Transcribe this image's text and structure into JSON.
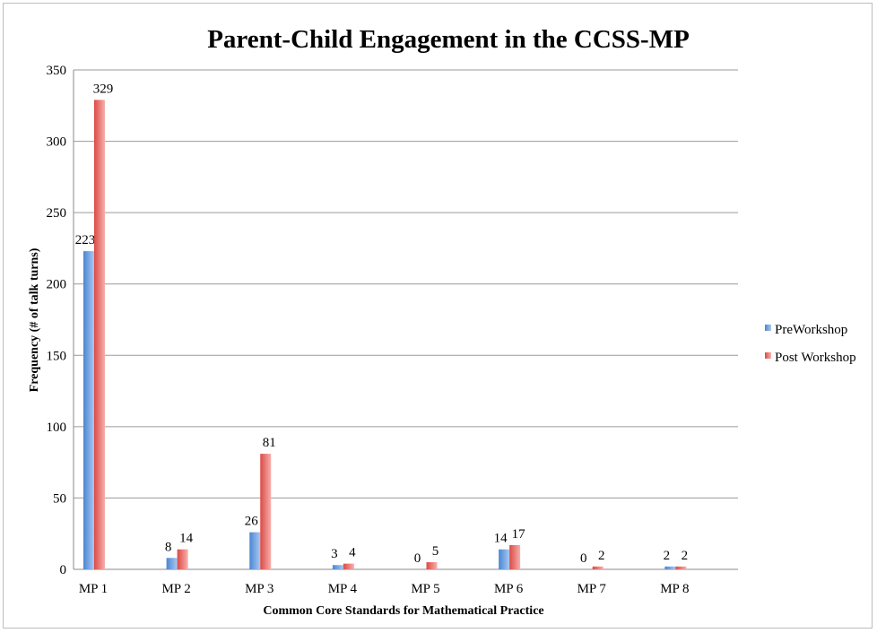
{
  "chart_data": {
    "type": "bar",
    "title": "Parent-Child Engagement in the CCSS-MP",
    "xlabel": "Common Core Standards for Mathematical Practice",
    "ylabel": "Frequency (# of talk turns)",
    "categories": [
      "MP 1",
      "MP 2",
      "MP 3",
      "MP 4",
      "MP 5",
      "MP 6",
      "MP 7",
      "MP 8"
    ],
    "series": [
      {
        "name": "PreWorkshop",
        "values": [
          223,
          8,
          26,
          3,
          0,
          14,
          0,
          2
        ]
      },
      {
        "name": "Post Workshop",
        "values": [
          329,
          14,
          81,
          4,
          5,
          17,
          2,
          2
        ]
      }
    ],
    "ylim": [
      0,
      350
    ],
    "yticks": [
      0,
      50,
      100,
      150,
      200,
      250,
      300,
      350
    ],
    "grid": true,
    "legend_position": "right",
    "colors": {
      "PreWorkshop": {
        "light": "#a9c8f2",
        "dark": "#4a86d2"
      },
      "Post Workshop": {
        "light": "#f7b0ae",
        "dark": "#db4a45"
      },
      "gridline": "#9a9a9a",
      "axis": "#888888"
    }
  }
}
